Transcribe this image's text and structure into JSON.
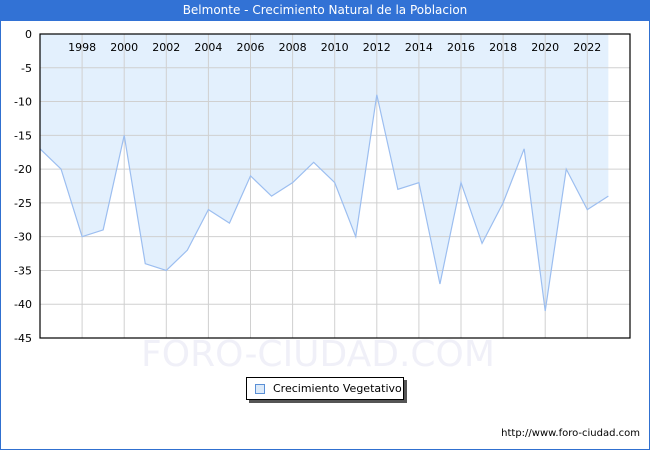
{
  "header": {
    "title": "Belmonte - Crecimiento Natural de la Poblacion"
  },
  "legend": {
    "label": "Crecimiento Vegetativo"
  },
  "footer": {
    "url": "http://www.foro-ciudad.com"
  },
  "watermark": "FORO-CIUDAD.COM",
  "colors": {
    "title_bar": "#3272d5",
    "area_fill": "#e3f0fd",
    "line": "#9cbef0",
    "grid": "#d0d0d0"
  },
  "chart_data": {
    "type": "area",
    "title": "Belmonte - Crecimiento Natural de la Poblacion",
    "xlabel": "",
    "ylabel": "",
    "ylim": [
      -45,
      0
    ],
    "yticks": [
      0,
      -5,
      -10,
      -15,
      -20,
      -25,
      -30,
      -35,
      -40,
      -45
    ],
    "xticks": [
      1998,
      2000,
      2002,
      2004,
      2006,
      2008,
      2010,
      2012,
      2014,
      2016,
      2018,
      2020,
      2022
    ],
    "grid": true,
    "legend_position": "bottom",
    "x": [
      1996,
      1997,
      1998,
      1999,
      2000,
      2001,
      2002,
      2003,
      2004,
      2005,
      2006,
      2007,
      2008,
      2009,
      2010,
      2011,
      2012,
      2013,
      2014,
      2015,
      2016,
      2017,
      2018,
      2019,
      2020,
      2021,
      2022,
      2023
    ],
    "series": [
      {
        "name": "Crecimiento Vegetativo",
        "values": [
          -17,
          -20,
          -30,
          -29,
          -15,
          -34,
          -35,
          -32,
          -26,
          -28,
          -21,
          -24,
          -22,
          -19,
          -22,
          -30,
          -9,
          -23,
          -22,
          -37,
          -22,
          -31,
          -25,
          -17,
          -41,
          -20,
          -26,
          -24
        ]
      }
    ]
  }
}
